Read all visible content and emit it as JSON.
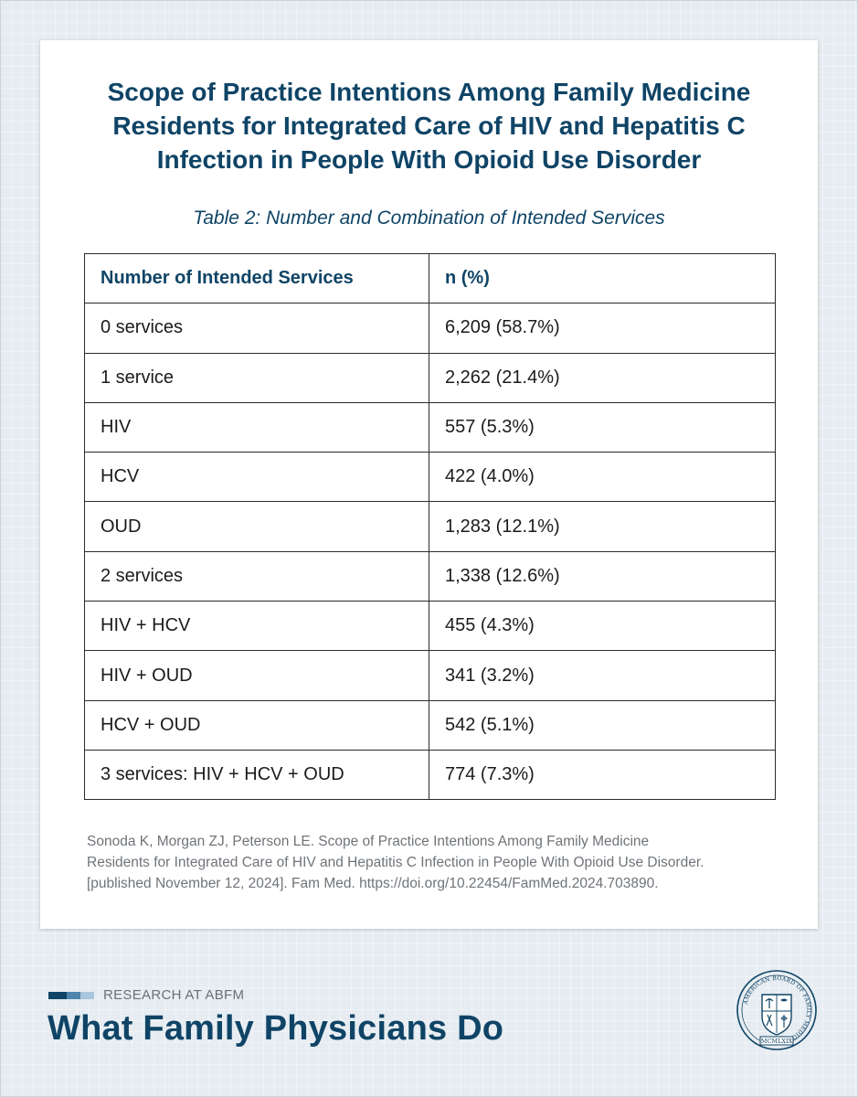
{
  "header": {
    "title_lines": [
      "Scope of Practice Intentions Among Family Medicine",
      "Residents for Integrated Care of HIV and Hepatitis C",
      "Infection in People With Opioid Use Disorder"
    ],
    "subtitle": "Table 2: Number and Combination of Intended Services"
  },
  "table": {
    "headers": [
      "Number of Intended Services",
      "n (%)"
    ],
    "rows": [
      [
        "0 services",
        "6,209 (58.7%)"
      ],
      [
        "1 service",
        "2,262 (21.4%)"
      ],
      [
        "HIV",
        "557 (5.3%)"
      ],
      [
        "HCV",
        "422 (4.0%)"
      ],
      [
        "OUD",
        "1,283 (12.1%)"
      ],
      [
        "2 services",
        "1,338 (12.6%)"
      ],
      [
        "HIV + HCV",
        "455 (4.3%)"
      ],
      [
        "HIV + OUD",
        "341 (3.2%)"
      ],
      [
        "HCV + OUD",
        "542 (5.1%)"
      ],
      [
        "3 services: HIV + HCV + OUD",
        "774 (7.3%)"
      ]
    ]
  },
  "citation_lines": [
    "Sonoda K, Morgan ZJ, Peterson LE. Scope of Practice Intentions Among Family Medicine",
    "Residents for Integrated Care of HIV and Hepatitis C Infection in People With Opioid Use Disorder.",
    "[published November 12, 2024]. Fam Med. https://doi.org/10.22454/FamMed.2024.703890."
  ],
  "footer": {
    "label": "RESEARCH AT ABFM",
    "title": "What Family Physicians Do",
    "seal": {
      "ring_text": "AMERICAN BOARD OF FAMILY MEDICINE",
      "year": "MCMLXIX",
      "icon": "abfm-seal-icon"
    }
  },
  "colors": {
    "brand_navy": "#0f4466",
    "bar_segments": [
      "#0f4466",
      "#4f84ad",
      "#a9c6dc"
    ],
    "background": "#e6ecf1"
  }
}
